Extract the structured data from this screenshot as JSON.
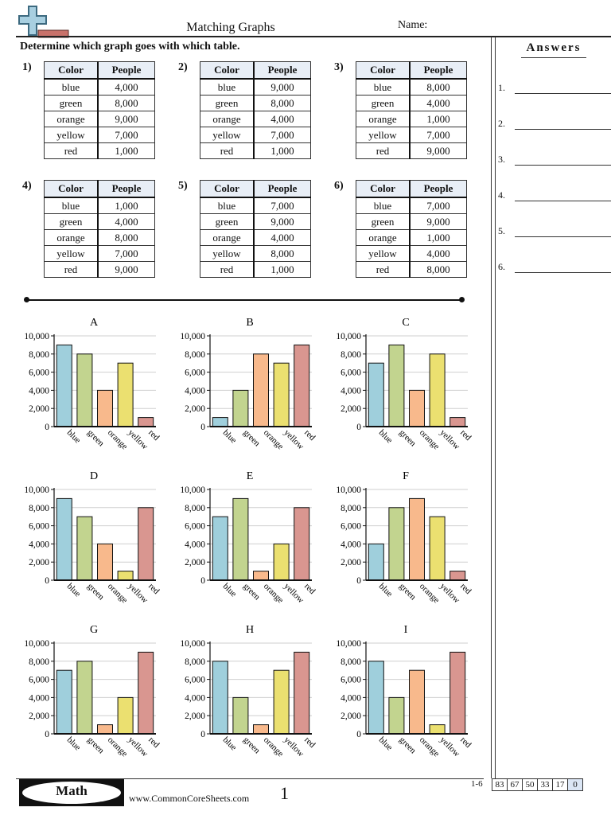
{
  "header": {
    "title": "Matching Graphs",
    "name_label": "Name:"
  },
  "instructions": "Determine which graph goes with which table.",
  "table_headers": {
    "color": "Color",
    "people": "People"
  },
  "problems": [
    {
      "number": "1)",
      "rows": [
        [
          "blue",
          "4,000"
        ],
        [
          "green",
          "8,000"
        ],
        [
          "orange",
          "9,000"
        ],
        [
          "yellow",
          "7,000"
        ],
        [
          "red",
          "1,000"
        ]
      ]
    },
    {
      "number": "2)",
      "rows": [
        [
          "blue",
          "9,000"
        ],
        [
          "green",
          "8,000"
        ],
        [
          "orange",
          "4,000"
        ],
        [
          "yellow",
          "7,000"
        ],
        [
          "red",
          "1,000"
        ]
      ]
    },
    {
      "number": "3)",
      "rows": [
        [
          "blue",
          "8,000"
        ],
        [
          "green",
          "4,000"
        ],
        [
          "orange",
          "1,000"
        ],
        [
          "yellow",
          "7,000"
        ],
        [
          "red",
          "9,000"
        ]
      ]
    },
    {
      "number": "4)",
      "rows": [
        [
          "blue",
          "1,000"
        ],
        [
          "green",
          "4,000"
        ],
        [
          "orange",
          "8,000"
        ],
        [
          "yellow",
          "7,000"
        ],
        [
          "red",
          "9,000"
        ]
      ]
    },
    {
      "number": "5)",
      "rows": [
        [
          "blue",
          "7,000"
        ],
        [
          "green",
          "9,000"
        ],
        [
          "orange",
          "4,000"
        ],
        [
          "yellow",
          "8,000"
        ],
        [
          "red",
          "1,000"
        ]
      ]
    },
    {
      "number": "6)",
      "rows": [
        [
          "blue",
          "7,000"
        ],
        [
          "green",
          "9,000"
        ],
        [
          "orange",
          "1,000"
        ],
        [
          "yellow",
          "4,000"
        ],
        [
          "red",
          "8,000"
        ]
      ]
    }
  ],
  "answers": {
    "title": "Answers",
    "items": [
      "1.",
      "2.",
      "3.",
      "4.",
      "5.",
      "6."
    ]
  },
  "colors": {
    "blue": "#9fcfdc",
    "green": "#c2d48f",
    "orange": "#f8b98c",
    "yellow": "#ebe070",
    "red": "#d99690"
  },
  "chart_data": [
    {
      "type": "bar",
      "title": "A",
      "categories": [
        "blue",
        "green",
        "orange",
        "yellow",
        "red"
      ],
      "values": [
        9000,
        8000,
        4000,
        7000,
        1000
      ],
      "ylim": [
        0,
        10000
      ],
      "yticks": [
        "0",
        "2,000",
        "4,000",
        "6,000",
        "8,000",
        "10,000"
      ],
      "grid": true
    },
    {
      "type": "bar",
      "title": "B",
      "categories": [
        "blue",
        "green",
        "orange",
        "yellow",
        "red"
      ],
      "values": [
        1000,
        4000,
        8000,
        7000,
        9000
      ],
      "ylim": [
        0,
        10000
      ],
      "yticks": [
        "0",
        "2,000",
        "4,000",
        "6,000",
        "8,000",
        "10,000"
      ],
      "grid": true
    },
    {
      "type": "bar",
      "title": "C",
      "categories": [
        "blue",
        "green",
        "orange",
        "yellow",
        "red"
      ],
      "values": [
        7000,
        9000,
        4000,
        8000,
        1000
      ],
      "ylim": [
        0,
        10000
      ],
      "yticks": [
        "0",
        "2,000",
        "4,000",
        "6,000",
        "8,000",
        "10,000"
      ],
      "grid": true
    },
    {
      "type": "bar",
      "title": "D",
      "categories": [
        "blue",
        "green",
        "orange",
        "yellow",
        "red"
      ],
      "values": [
        9000,
        7000,
        4000,
        1000,
        8000
      ],
      "ylim": [
        0,
        10000
      ],
      "yticks": [
        "0",
        "2,000",
        "4,000",
        "6,000",
        "8,000",
        "10,000"
      ],
      "grid": true
    },
    {
      "type": "bar",
      "title": "E",
      "categories": [
        "blue",
        "green",
        "orange",
        "yellow",
        "red"
      ],
      "values": [
        7000,
        9000,
        1000,
        4000,
        8000
      ],
      "ylim": [
        0,
        10000
      ],
      "yticks": [
        "0",
        "2,000",
        "4,000",
        "6,000",
        "8,000",
        "10,000"
      ],
      "grid": true
    },
    {
      "type": "bar",
      "title": "F",
      "categories": [
        "blue",
        "green",
        "orange",
        "yellow",
        "red"
      ],
      "values": [
        4000,
        8000,
        9000,
        7000,
        1000
      ],
      "ylim": [
        0,
        10000
      ],
      "yticks": [
        "0",
        "2,000",
        "4,000",
        "6,000",
        "8,000",
        "10,000"
      ],
      "grid": true
    },
    {
      "type": "bar",
      "title": "G",
      "categories": [
        "blue",
        "green",
        "orange",
        "yellow",
        "red"
      ],
      "values": [
        7000,
        8000,
        1000,
        4000,
        9000
      ],
      "ylim": [
        0,
        10000
      ],
      "yticks": [
        "0",
        "2,000",
        "4,000",
        "6,000",
        "8,000",
        "10,000"
      ],
      "grid": true
    },
    {
      "type": "bar",
      "title": "H",
      "categories": [
        "blue",
        "green",
        "orange",
        "yellow",
        "red"
      ],
      "values": [
        8000,
        4000,
        1000,
        7000,
        9000
      ],
      "ylim": [
        0,
        10000
      ],
      "yticks": [
        "0",
        "2,000",
        "4,000",
        "6,000",
        "8,000",
        "10,000"
      ],
      "grid": true
    },
    {
      "type": "bar",
      "title": "I",
      "categories": [
        "blue",
        "green",
        "orange",
        "yellow",
        "red"
      ],
      "values": [
        8000,
        4000,
        7000,
        1000,
        9000
      ],
      "ylim": [
        0,
        10000
      ],
      "yticks": [
        "0",
        "2,000",
        "4,000",
        "6,000",
        "8,000",
        "10,000"
      ],
      "grid": true
    }
  ],
  "footer": {
    "math_label": "Math",
    "website": "www.CommonCoreSheets.com",
    "page_number": "1",
    "score_range": "1-6",
    "scores": [
      "83",
      "67",
      "50",
      "33",
      "17",
      "0"
    ]
  }
}
